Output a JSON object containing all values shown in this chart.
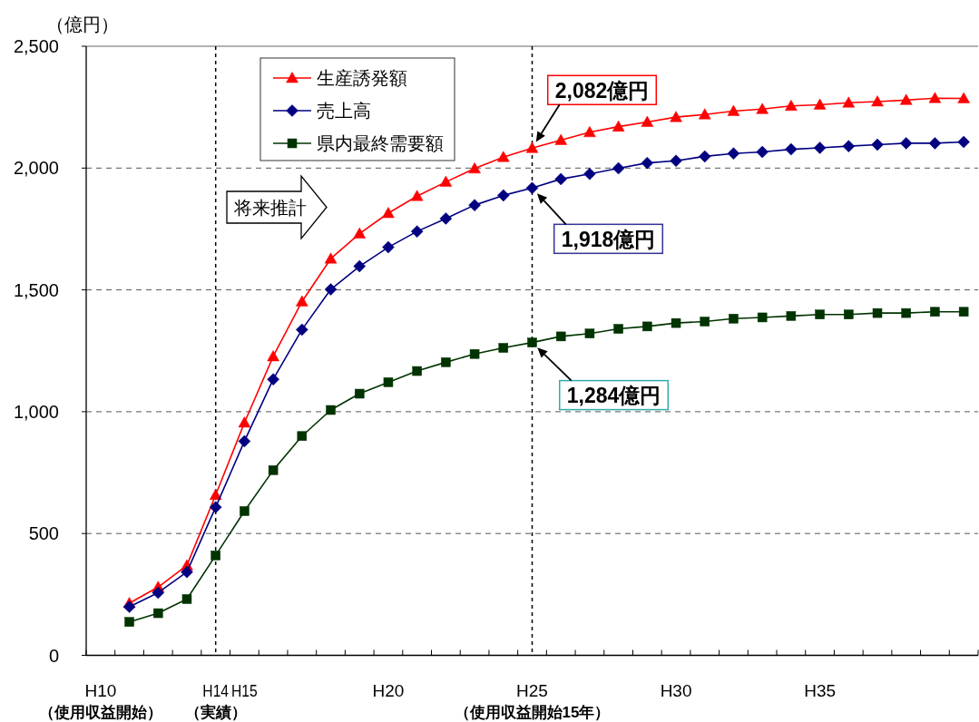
{
  "chart_data": {
    "type": "line",
    "ylabel": "（億円）",
    "categories": [
      "H10",
      null,
      null,
      null,
      "H14",
      "H15",
      null,
      null,
      null,
      null,
      "H20",
      null,
      null,
      null,
      null,
      "H25",
      null,
      null,
      null,
      null,
      "H30",
      null,
      null,
      null,
      null,
      "H35",
      null,
      null,
      null,
      null,
      null
    ],
    "series": [
      {
        "name": "生産誘発額",
        "color": "#ff0000",
        "marker": "triangle",
        "values": [
          null,
          214,
          280,
          369,
          658,
          955,
          1227,
          1452,
          1628,
          1731,
          1815,
          1885,
          1943,
          1998,
          2045,
          2082,
          2115,
          2147,
          2170,
          2189,
          2209,
          2220,
          2234,
          2242,
          2255,
          2260,
          2268,
          2273,
          2279,
          2287,
          2286
        ]
      },
      {
        "name": "売上高",
        "color": "#000080",
        "marker": "diamond",
        "values": [
          null,
          199,
          257,
          342,
          608,
          879,
          1133,
          1337,
          1502,
          1597,
          1675,
          1740,
          1793,
          1848,
          1888,
          1918,
          1955,
          1976,
          1999,
          2021,
          2030,
          2048,
          2060,
          2066,
          2077,
          2083,
          2090,
          2096,
          2102,
          2102,
          2107
        ]
      },
      {
        "name": "県内最終需要額",
        "color": "#003300",
        "marker": "square",
        "values": [
          null,
          137,
          173,
          231,
          410,
          592,
          760,
          900,
          1007,
          1074,
          1121,
          1167,
          1203,
          1237,
          1262,
          1284,
          1309,
          1321,
          1340,
          1350,
          1364,
          1370,
          1382,
          1387,
          1393,
          1399,
          1399,
          1405,
          1405,
          1410,
          1410
        ]
      }
    ],
    "ylim": [
      0,
      2500
    ],
    "yticks": [
      0,
      500,
      {
        "value": 1000,
        "label": "1,000"
      },
      {
        "value": 1500,
        "label": "1,500"
      },
      {
        "value": 2000,
        "label": "2,000"
      },
      {
        "value": 2500,
        "label": "2,500"
      }
    ],
    "grid": "y",
    "legend": "top left",
    "ref_lines": [
      {
        "axis": "x",
        "value": "H14",
        "color": "#000000",
        "line_style": "dashed"
      },
      {
        "axis": "x",
        "value": "H25",
        "color": "#000000",
        "line_style": "dashed"
      }
    ],
    "annotations": [
      "将来推計",
      "（使用収益開始）",
      "（実績）",
      "（使用収益開始15年）",
      {
        "text": "2,082億円",
        "x": "H25",
        "y": 2082
      },
      {
        "text": "1,918億円",
        "x": "H25",
        "y": 1918
      },
      {
        "text": "1,284億円",
        "x": "H25",
        "y": 1284
      }
    ]
  }
}
